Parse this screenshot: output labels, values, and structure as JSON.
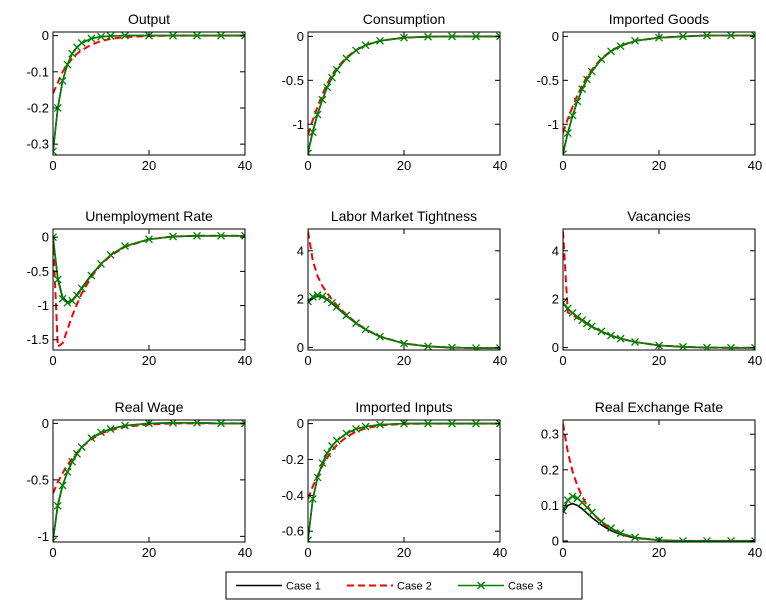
{
  "legend": {
    "entries": [
      {
        "label": "Case 1",
        "color": "#000000",
        "style": "solid"
      },
      {
        "label": "Case 2",
        "color": "#ff0000",
        "style": "dashed"
      },
      {
        "label": "Case 3",
        "color": "#008000",
        "style": "solid-x-marker"
      }
    ],
    "placement": "bottom-center"
  },
  "chart_data": [
    {
      "type": "line",
      "title": "Output",
      "xlim": [
        0,
        40
      ],
      "ylim": [
        -0.33,
        0.01
      ],
      "xticks": [
        "0",
        "20",
        "40"
      ],
      "yticks": [
        {
          "v": 0,
          "label": "0"
        },
        {
          "v": -0.1,
          "label": "-0.1"
        },
        {
          "v": -0.2,
          "label": "-0.2"
        },
        {
          "v": -0.3,
          "label": "-0.3"
        }
      ],
      "x": [
        0,
        1,
        2,
        3,
        4,
        5,
        6,
        8,
        10,
        12,
        15,
        20,
        25,
        30,
        35,
        40
      ],
      "series": [
        {
          "name": "Case 1",
          "values": [
            -0.32,
            -0.2,
            -0.125,
            -0.08,
            -0.05,
            -0.032,
            -0.02,
            -0.008,
            -0.003,
            -0.001,
            0,
            0,
            0,
            0,
            0,
            0
          ]
        },
        {
          "name": "Case 2",
          "values": [
            -0.16,
            -0.13,
            -0.1,
            -0.08,
            -0.063,
            -0.05,
            -0.04,
            -0.025,
            -0.015,
            -0.009,
            -0.004,
            -0.001,
            0,
            0,
            0,
            0
          ]
        },
        {
          "name": "Case 3",
          "values": [
            -0.32,
            -0.2,
            -0.125,
            -0.08,
            -0.05,
            -0.032,
            -0.02,
            -0.008,
            -0.003,
            -0.001,
            0,
            0,
            0,
            0,
            0,
            0
          ]
        }
      ]
    },
    {
      "type": "line",
      "title": "Consumption",
      "xlim": [
        0,
        40
      ],
      "ylim": [
        -1.35,
        0.05
      ],
      "xticks": [
        "0",
        "20",
        "40"
      ],
      "yticks": [
        {
          "v": 0,
          "label": "0"
        },
        {
          "v": -0.5,
          "label": "-0.5"
        },
        {
          "v": -1,
          "label": "-1"
        }
      ],
      "x": [
        0,
        1,
        2,
        3,
        4,
        5,
        6,
        8,
        10,
        12,
        15,
        20,
        25,
        30,
        35,
        40
      ],
      "series": [
        {
          "name": "Case 1",
          "values": [
            -1.32,
            -1.08,
            -0.88,
            -0.72,
            -0.58,
            -0.47,
            -0.38,
            -0.25,
            -0.16,
            -0.1,
            -0.05,
            -0.015,
            -0.004,
            0,
            0,
            0
          ]
        },
        {
          "name": "Case 2",
          "values": [
            -1.12,
            -0.95,
            -0.8,
            -0.66,
            -0.54,
            -0.44,
            -0.36,
            -0.24,
            -0.155,
            -0.1,
            -0.05,
            -0.015,
            -0.004,
            0,
            0,
            0
          ]
        },
        {
          "name": "Case 3",
          "values": [
            -1.33,
            -1.09,
            -0.89,
            -0.72,
            -0.58,
            -0.47,
            -0.38,
            -0.25,
            -0.16,
            -0.1,
            -0.05,
            -0.015,
            -0.004,
            0,
            0,
            0
          ]
        }
      ]
    },
    {
      "type": "line",
      "title": "Imported Goods",
      "xlim": [
        0,
        40
      ],
      "ylim": [
        -1.35,
        0.05
      ],
      "xticks": [
        "0",
        "20",
        "40"
      ],
      "yticks": [
        {
          "v": 0,
          "label": "0"
        },
        {
          "v": -0.5,
          "label": "-0.5"
        },
        {
          "v": -1,
          "label": "-1"
        }
      ],
      "x": [
        0,
        1,
        2,
        3,
        4,
        5,
        6,
        8,
        10,
        12,
        15,
        20,
        25,
        30,
        35,
        40
      ],
      "series": [
        {
          "name": "Case 1",
          "values": [
            -1.33,
            -1.1,
            -0.9,
            -0.74,
            -0.6,
            -0.49,
            -0.4,
            -0.26,
            -0.17,
            -0.11,
            -0.05,
            -0.015,
            0,
            0.01,
            0.01,
            0.01
          ]
        },
        {
          "name": "Case 2",
          "values": [
            -1.1,
            -0.94,
            -0.8,
            -0.67,
            -0.56,
            -0.46,
            -0.38,
            -0.25,
            -0.165,
            -0.105,
            -0.05,
            -0.015,
            0,
            0.01,
            0.01,
            0.01
          ]
        },
        {
          "name": "Case 3",
          "values": [
            -1.34,
            -1.1,
            -0.9,
            -0.74,
            -0.6,
            -0.49,
            -0.4,
            -0.26,
            -0.17,
            -0.11,
            -0.05,
            -0.015,
            0,
            0.01,
            0.01,
            0.01
          ]
        }
      ]
    },
    {
      "type": "line",
      "title": "Unemployment Rate",
      "xlim": [
        0,
        40
      ],
      "ylim": [
        -1.65,
        0.12
      ],
      "xticks": [
        "0",
        "20",
        "40"
      ],
      "yticks": [
        {
          "v": 0,
          "label": "0"
        },
        {
          "v": -0.5,
          "label": "-0.5"
        },
        {
          "v": -1,
          "label": "-1"
        },
        {
          "v": -1.5,
          "label": "-1.5"
        }
      ],
      "x": [
        0,
        1,
        2,
        3,
        4,
        5,
        6,
        8,
        10,
        12,
        15,
        20,
        25,
        30,
        35,
        40
      ],
      "series": [
        {
          "name": "Case 1",
          "values": [
            0,
            -0.6,
            -0.88,
            -0.95,
            -0.92,
            -0.84,
            -0.74,
            -0.55,
            -0.39,
            -0.26,
            -0.13,
            -0.03,
            0.01,
            0.02,
            0.02,
            0.02
          ]
        },
        {
          "name": "Case 2",
          "values": [
            0,
            -1.6,
            -1.55,
            -1.35,
            -1.15,
            -0.98,
            -0.82,
            -0.58,
            -0.4,
            -0.27,
            -0.14,
            -0.03,
            0.01,
            0.02,
            0.02,
            0.02
          ]
        },
        {
          "name": "Case 3",
          "values": [
            0,
            -0.62,
            -0.9,
            -0.96,
            -0.93,
            -0.85,
            -0.75,
            -0.56,
            -0.39,
            -0.26,
            -0.13,
            -0.03,
            0.01,
            0.02,
            0.02,
            0.02
          ]
        }
      ]
    },
    {
      "type": "line",
      "title": "Labor Market Tightness",
      "xlim": [
        0,
        40
      ],
      "ylim": [
        -0.1,
        4.9
      ],
      "xticks": [
        "0",
        "20",
        "40"
      ],
      "yticks": [
        {
          "v": 0,
          "label": "0"
        },
        {
          "v": 2,
          "label": "2"
        },
        {
          "v": 4,
          "label": "4"
        }
      ],
      "x": [
        0,
        1,
        2,
        3,
        4,
        5,
        6,
        8,
        10,
        12,
        15,
        20,
        25,
        30,
        35,
        40
      ],
      "series": [
        {
          "name": "Case 1",
          "values": [
            1.85,
            2.05,
            2.12,
            2.08,
            1.97,
            1.82,
            1.65,
            1.31,
            1.0,
            0.74,
            0.45,
            0.17,
            0.05,
            0.0,
            -0.02,
            -0.02
          ]
        },
        {
          "name": "Case 2",
          "values": [
            4.8,
            3.6,
            2.95,
            2.55,
            2.25,
            1.98,
            1.75,
            1.36,
            1.03,
            0.76,
            0.46,
            0.17,
            0.05,
            0.0,
            -0.02,
            -0.02
          ]
        },
        {
          "name": "Case 3",
          "values": [
            1.9,
            2.1,
            2.17,
            2.12,
            2.0,
            1.85,
            1.68,
            1.33,
            1.01,
            0.75,
            0.45,
            0.17,
            0.05,
            0.0,
            -0.02,
            -0.02
          ]
        }
      ]
    },
    {
      "type": "line",
      "title": "Vacancies",
      "xlim": [
        0,
        40
      ],
      "ylim": [
        -0.1,
        4.9
      ],
      "xticks": [
        "0",
        "20",
        "40"
      ],
      "yticks": [
        {
          "v": 0,
          "label": "0"
        },
        {
          "v": 2,
          "label": "2"
        },
        {
          "v": 4,
          "label": "4"
        }
      ],
      "x": [
        0,
        1,
        2,
        3,
        4,
        5,
        6,
        8,
        10,
        12,
        15,
        20,
        25,
        30,
        35,
        40
      ],
      "series": [
        {
          "name": "Case 1",
          "values": [
            1.82,
            1.6,
            1.42,
            1.26,
            1.12,
            0.99,
            0.87,
            0.66,
            0.5,
            0.37,
            0.23,
            0.09,
            0.03,
            0.0,
            -0.01,
            -0.01
          ]
        },
        {
          "name": "Case 2",
          "values": [
            4.8,
            1.45,
            1.35,
            1.22,
            1.1,
            0.98,
            0.86,
            0.66,
            0.5,
            0.37,
            0.23,
            0.09,
            0.03,
            0.0,
            -0.01,
            -0.01
          ]
        },
        {
          "name": "Case 3",
          "values": [
            1.85,
            1.62,
            1.43,
            1.27,
            1.13,
            1.0,
            0.88,
            0.67,
            0.5,
            0.37,
            0.23,
            0.09,
            0.03,
            0.0,
            -0.01,
            -0.01
          ]
        }
      ]
    },
    {
      "type": "line",
      "title": "Real Wage",
      "xlim": [
        0,
        40
      ],
      "ylim": [
        -1.05,
        0.03
      ],
      "xticks": [
        "0",
        "20",
        "40"
      ],
      "yticks": [
        {
          "v": 0,
          "label": "0"
        },
        {
          "v": -0.5,
          "label": "-0.5"
        },
        {
          "v": -1,
          "label": "-1"
        }
      ],
      "x": [
        0,
        1,
        2,
        3,
        4,
        5,
        6,
        8,
        10,
        12,
        15,
        20,
        25,
        30,
        35,
        40
      ],
      "series": [
        {
          "name": "Case 1",
          "values": [
            -1.03,
            -0.72,
            -0.55,
            -0.43,
            -0.34,
            -0.27,
            -0.21,
            -0.13,
            -0.08,
            -0.05,
            -0.02,
            0,
            0.005,
            0.005,
            0,
            0
          ]
        },
        {
          "name": "Case 2",
          "values": [
            -0.62,
            -0.52,
            -0.44,
            -0.37,
            -0.31,
            -0.26,
            -0.21,
            -0.14,
            -0.09,
            -0.06,
            -0.03,
            -0.01,
            0,
            0,
            0,
            0
          ]
        },
        {
          "name": "Case 3",
          "values": [
            -1.04,
            -0.73,
            -0.55,
            -0.43,
            -0.34,
            -0.27,
            -0.21,
            -0.13,
            -0.08,
            -0.05,
            -0.02,
            0,
            0.005,
            0.005,
            0,
            0
          ]
        }
      ]
    },
    {
      "type": "line",
      "title": "Imported Inputs",
      "xlim": [
        0,
        40
      ],
      "ylim": [
        -0.66,
        0.02
      ],
      "xticks": [
        "0",
        "20",
        "40"
      ],
      "yticks": [
        {
          "v": 0,
          "label": "0"
        },
        {
          "v": -0.2,
          "label": "-0.2"
        },
        {
          "v": -0.4,
          "label": "-0.4"
        },
        {
          "v": -0.6,
          "label": "-0.6"
        }
      ],
      "x": [
        0,
        1,
        2,
        3,
        4,
        5,
        6,
        8,
        10,
        12,
        15,
        20,
        25,
        30,
        35,
        40
      ],
      "series": [
        {
          "name": "Case 1",
          "values": [
            -0.65,
            -0.42,
            -0.3,
            -0.22,
            -0.165,
            -0.125,
            -0.095,
            -0.055,
            -0.03,
            -0.017,
            -0.006,
            0,
            0,
            0,
            0,
            0
          ]
        },
        {
          "name": "Case 2",
          "values": [
            -0.42,
            -0.35,
            -0.29,
            -0.235,
            -0.19,
            -0.15,
            -0.12,
            -0.075,
            -0.045,
            -0.027,
            -0.01,
            -0.002,
            0,
            0,
            0,
            0
          ]
        },
        {
          "name": "Case 3",
          "values": [
            -0.65,
            -0.42,
            -0.3,
            -0.22,
            -0.165,
            -0.125,
            -0.095,
            -0.055,
            -0.03,
            -0.017,
            -0.006,
            0,
            0,
            0,
            0,
            0
          ]
        }
      ]
    },
    {
      "type": "line",
      "title": "Real Exchange Rate",
      "xlim": [
        0,
        40
      ],
      "ylim": [
        -0.003,
        0.34
      ],
      "xticks": [
        "0",
        "20",
        "40"
      ],
      "yticks": [
        {
          "v": 0,
          "label": "0"
        },
        {
          "v": 0.1,
          "label": "0.1"
        },
        {
          "v": 0.2,
          "label": "0.2"
        },
        {
          "v": 0.3,
          "label": "0.3"
        }
      ],
      "x": [
        0,
        1,
        2,
        3,
        4,
        5,
        6,
        8,
        10,
        12,
        15,
        20,
        25,
        30,
        35,
        40
      ],
      "series": [
        {
          "name": "Case 1",
          "values": [
            0.08,
            0.1,
            0.105,
            0.1,
            0.09,
            0.078,
            0.066,
            0.045,
            0.029,
            0.018,
            0.008,
            0.002,
            0,
            0,
            0,
            0
          ]
        },
        {
          "name": "Case 2",
          "values": [
            0.33,
            0.25,
            0.195,
            0.155,
            0.125,
            0.1,
            0.08,
            0.052,
            0.033,
            0.02,
            0.009,
            0.002,
            0,
            0,
            0,
            0
          ]
        },
        {
          "name": "Case 3",
          "values": [
            0.085,
            0.115,
            0.125,
            0.12,
            0.108,
            0.094,
            0.08,
            0.055,
            0.036,
            0.022,
            0.01,
            0.002,
            0,
            0,
            0,
            0
          ]
        }
      ]
    }
  ]
}
